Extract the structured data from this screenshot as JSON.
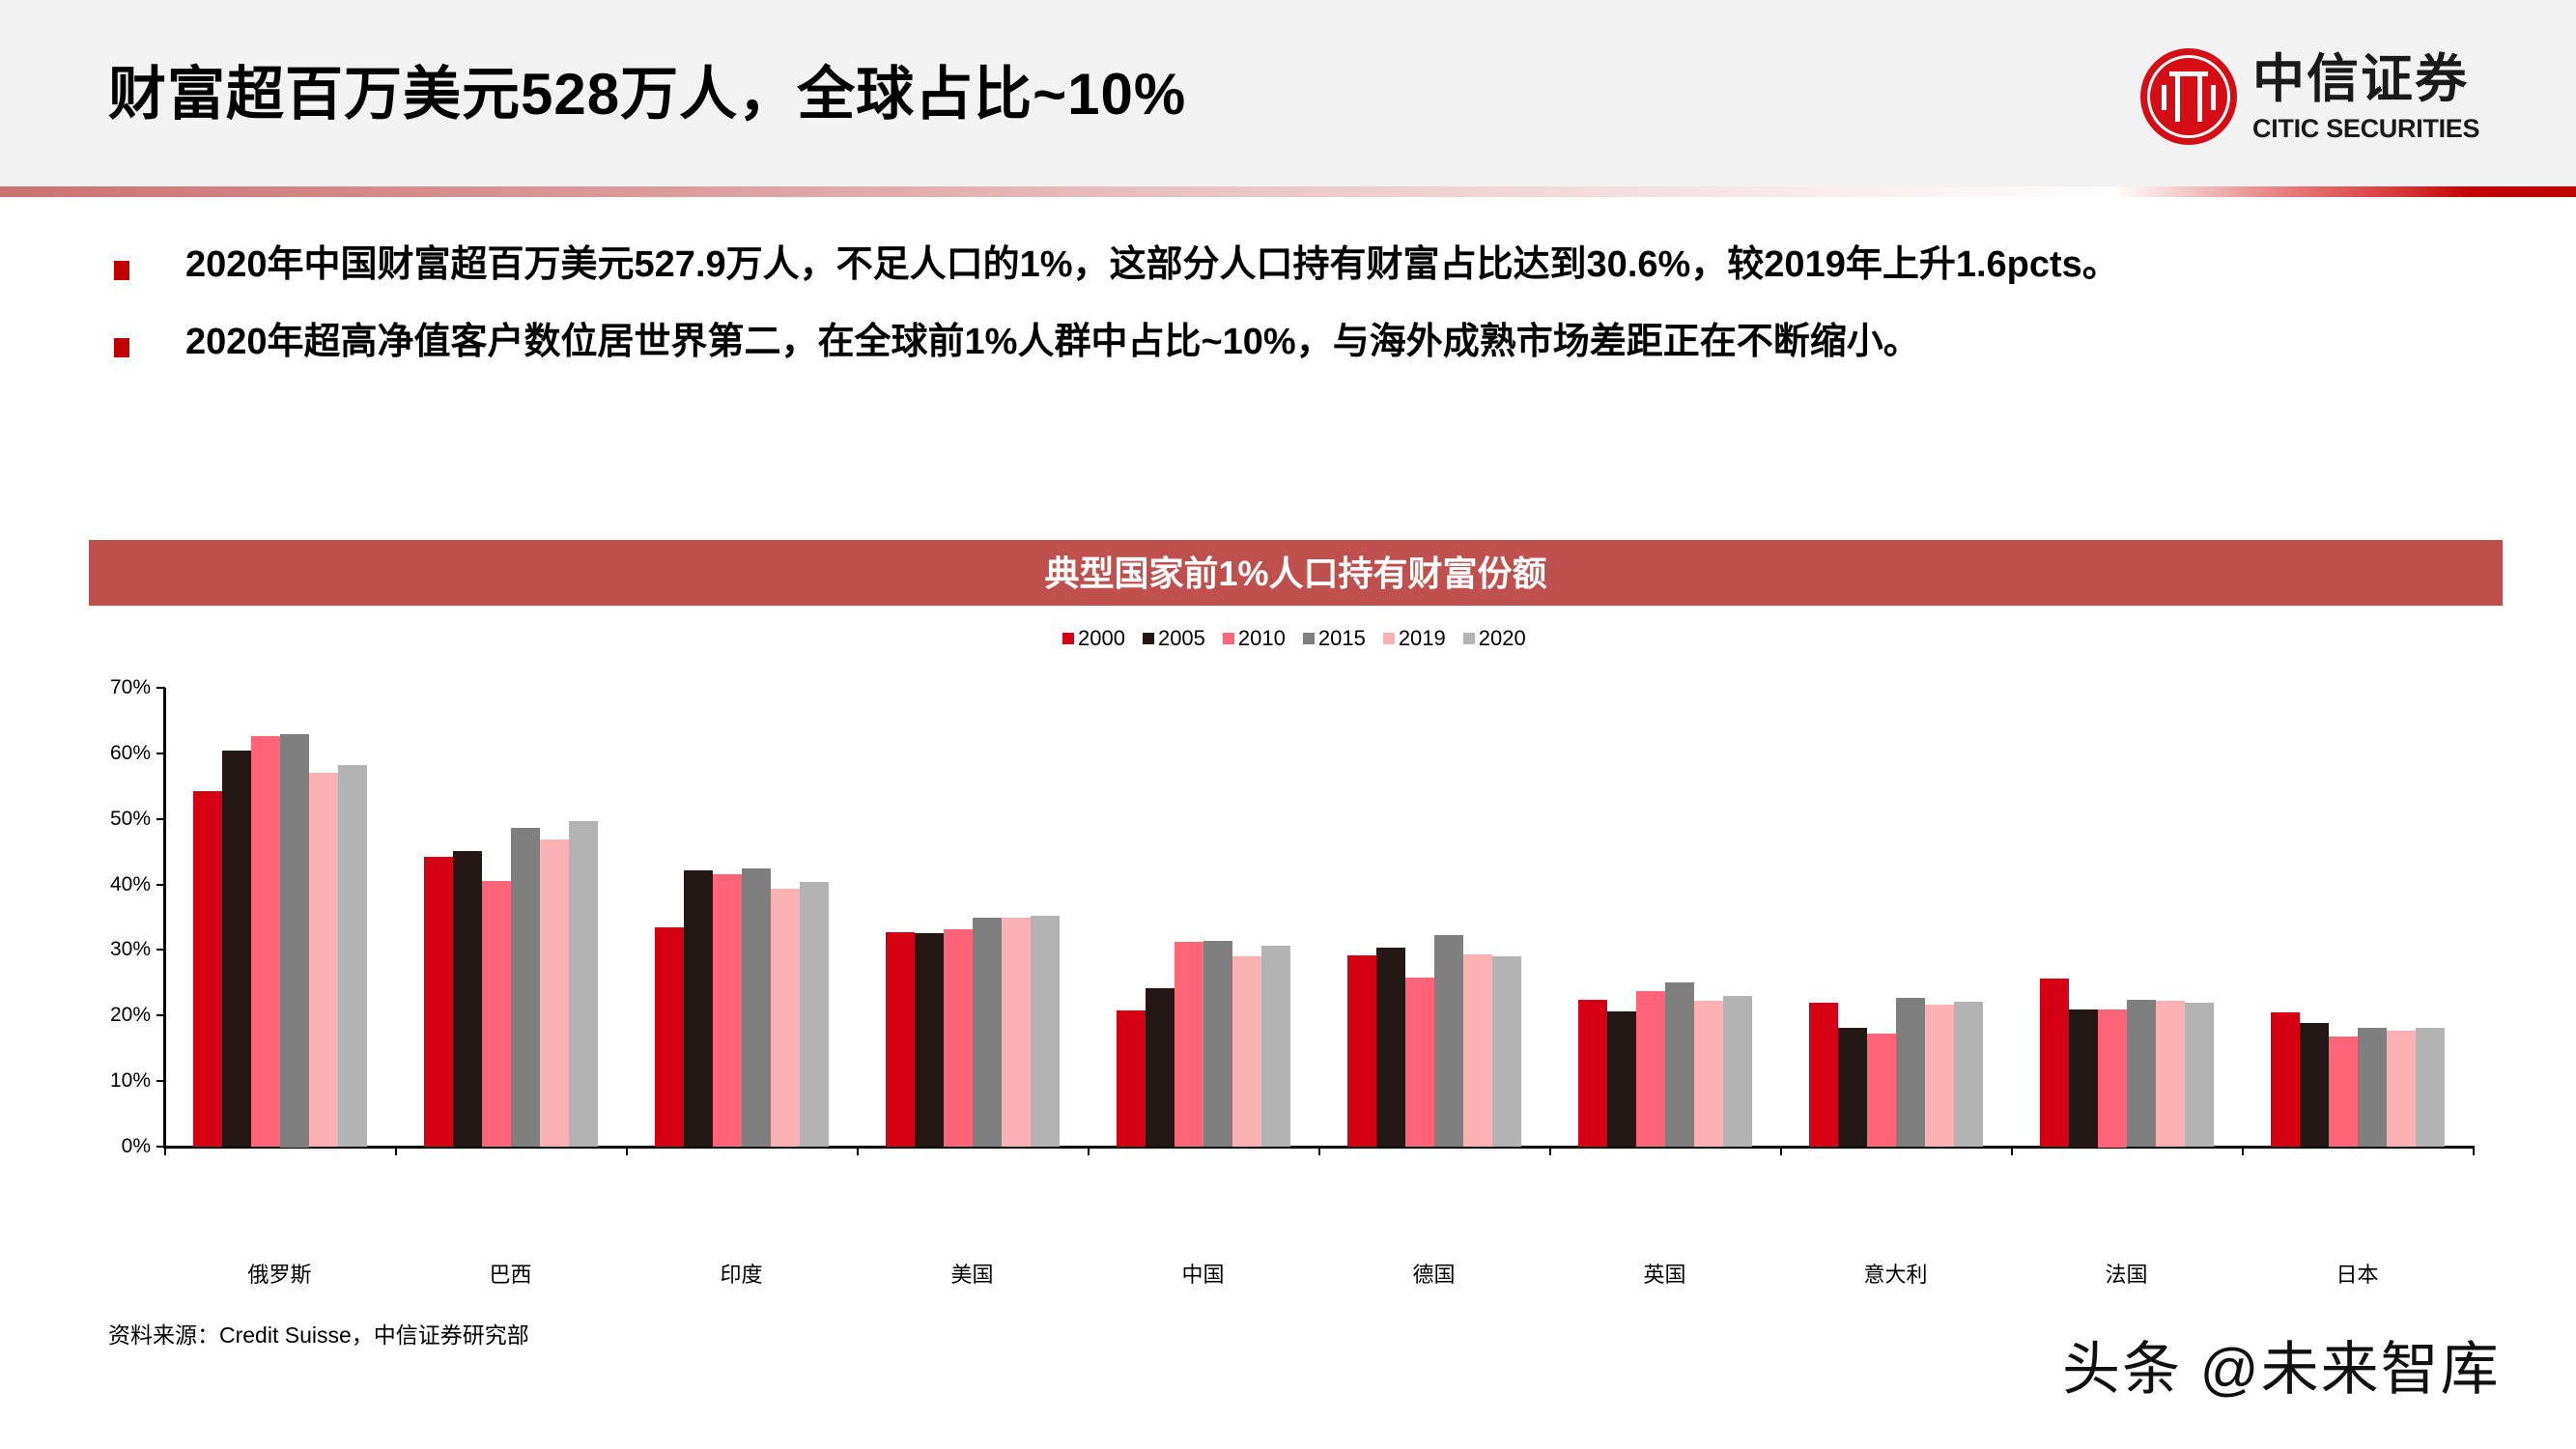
{
  "header": {
    "title": "财富超百万美元528万人，全球占比~10%",
    "logo": {
      "cn": "中信证券",
      "en": "CITIC SECURITIES",
      "icon": "citic-logo-icon",
      "color": "#d40e14"
    }
  },
  "bullets": [
    {
      "text": "2020年中国财富超百万美元527.9万人，不足人口的1%，这部分人口持有财富占比达到30.6%，较2019年上升1.6pcts。"
    },
    {
      "text": "2020年超高净值客户数位居世界第二，在全球前1%人群中占比~10%，与海外成熟市场差距正在不断缩小。"
    }
  ],
  "chart": {
    "title": "典型国家前1%人口持有财富份额",
    "band_color": "#c0504d",
    "y_ticks": [
      "0%",
      "10%",
      "20%",
      "30%",
      "40%",
      "50%",
      "60%",
      "70%"
    ]
  },
  "chart_data": {
    "type": "bar",
    "title": "典型国家前1%人口持有财富份额",
    "xlabel": "",
    "ylabel": "",
    "ylim": [
      0,
      70
    ],
    "y_unit": "%",
    "grid": false,
    "legend_position": "top",
    "categories": [
      "俄罗斯",
      "巴西",
      "印度",
      "美国",
      "中国",
      "德国",
      "英国",
      "意大利",
      "法国",
      "日本"
    ],
    "series": [
      {
        "name": "2000",
        "color": "#d50014",
        "values": [
          54.3,
          44.2,
          33.4,
          32.7,
          20.8,
          29.2,
          22.4,
          22.0,
          25.6,
          20.5
        ]
      },
      {
        "name": "2005",
        "color": "#231816",
        "values": [
          60.4,
          45.1,
          42.1,
          32.6,
          24.2,
          30.4,
          20.7,
          18.2,
          21.0,
          18.9
        ]
      },
      {
        "name": "2010",
        "color": "#ff6479",
        "values": [
          62.6,
          40.5,
          41.6,
          33.2,
          31.3,
          25.8,
          23.7,
          17.2,
          21.0,
          16.8
        ]
      },
      {
        "name": "2015",
        "color": "#7f7f7f",
        "values": [
          63.0,
          48.6,
          42.4,
          34.9,
          31.4,
          32.3,
          25.1,
          22.7,
          22.4,
          18.1
        ]
      },
      {
        "name": "2019",
        "color": "#fcb1b4",
        "values": [
          57.1,
          46.9,
          39.4,
          34.9,
          29.0,
          29.3,
          22.3,
          21.7,
          22.3,
          17.7
        ]
      },
      {
        "name": "2020",
        "color": "#b3b3b3",
        "values": [
          58.2,
          49.6,
          40.4,
          35.2,
          30.6,
          29.0,
          23.0,
          22.1,
          22.0,
          18.1
        ]
      }
    ]
  },
  "footer": {
    "source": "资料来源：Credit Suisse，中信证券研究部",
    "watermark": "头条 @未来智库"
  }
}
